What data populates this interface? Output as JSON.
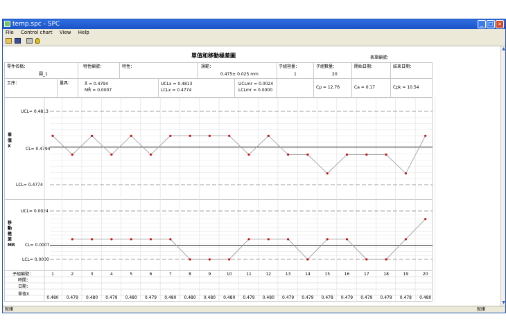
{
  "window": {
    "title": "temp.spc - SPC",
    "controls": [
      "_",
      "□",
      "×"
    ]
  },
  "menu": [
    "File",
    "Control chart",
    "View",
    "Help"
  ],
  "toolbar": [
    "open-icon",
    "save-icon",
    "print-icon",
    "help-icon"
  ],
  "report": {
    "title": "單值和移動極差圖",
    "chart_no_label": "表單編號："
  },
  "header": {
    "part_name_label": "零件名稱：",
    "part_name_value": "圓_1",
    "char_no_label": "特性編號：",
    "char_label": "特性：",
    "spec_label": "規範：",
    "spec_value": "0.475± 0.025 mm",
    "subgroup_size_label": "子組容量：",
    "subgroup_size_value": "1",
    "subgroup_count_label": "子組數量：",
    "subgroup_count_value": "20",
    "start_date_label": "開始日期：",
    "end_date_label": "結束日期：",
    "process_label": "工序：",
    "gauge_label": "量具：",
    "xbar": "X̄ =  0.4794",
    "mrbar": "MR̄ =  0.0007",
    "uclx": "UCLx =  0.4813",
    "lclx": "LCLx =  0.4774",
    "uclmr": "UCLmr =  0.0024",
    "lclmr": "LCLmr =  0.0000",
    "cp": "Cp = 12.76",
    "ca": "Ca = 0.17",
    "cpk": "Cpk = 10.54"
  },
  "labels": {
    "x_chart": "單值X",
    "mr_chart": "移動極差MR",
    "x_ucl": "UCL= 0.4813",
    "x_cl": "CL= 0.4794",
    "x_lcl": "LCL= 0.4774",
    "mr_ucl": "UCL= 0.0024",
    "mr_cl": "CL= 0.0007",
    "mr_lcl": "LCL= 0.0000",
    "row_subgroup": "子組編號：",
    "row_time": "時間：",
    "row_date": "日期：",
    "row_value": "單值X"
  },
  "status": {
    "left": "就緒",
    "right": "就緒"
  },
  "chart_data": [
    {
      "type": "line",
      "name": "單值X",
      "x": [
        1,
        2,
        3,
        4,
        5,
        6,
        7,
        8,
        9,
        10,
        11,
        12,
        13,
        14,
        15,
        16,
        17,
        18,
        19,
        20
      ],
      "values": [
        0.48,
        0.479,
        0.48,
        0.479,
        0.48,
        0.479,
        0.48,
        0.48,
        0.48,
        0.48,
        0.479,
        0.48,
        0.479,
        0.479,
        0.478,
        0.479,
        0.479,
        0.479,
        0.478,
        0.48
      ],
      "ucl": 0.4813,
      "cl": 0.4794,
      "lcl": 0.4774,
      "value_labels": [
        "0.480",
        "0.479",
        "0.480",
        "0.479",
        "0.480",
        "0.479",
        "0.480",
        "0.480",
        "0.480",
        "0.480",
        "0.479",
        "0.480",
        "0.479",
        "0.479",
        "0.478",
        "0.479",
        "0.479",
        "0.479",
        "0.478",
        "0.480"
      ]
    },
    {
      "type": "line",
      "name": "移動極差MR",
      "x": [
        2,
        3,
        4,
        5,
        6,
        7,
        8,
        9,
        10,
        11,
        12,
        13,
        14,
        15,
        16,
        17,
        18,
        19,
        20
      ],
      "values": [
        0.001,
        0.001,
        0.001,
        0.001,
        0.001,
        0.001,
        0.0,
        0.0,
        0.0,
        0.001,
        0.001,
        0.001,
        0.0,
        0.001,
        0.001,
        0.0,
        0.0,
        0.001,
        0.002
      ],
      "ucl": 0.0024,
      "cl": 0.0007,
      "lcl": 0.0
    }
  ],
  "colors": {
    "titlebar": "#1b52c8",
    "centerline": "#000000",
    "limitline": "#808080",
    "series": "#a0a0a0",
    "marker": "#cc1111"
  }
}
